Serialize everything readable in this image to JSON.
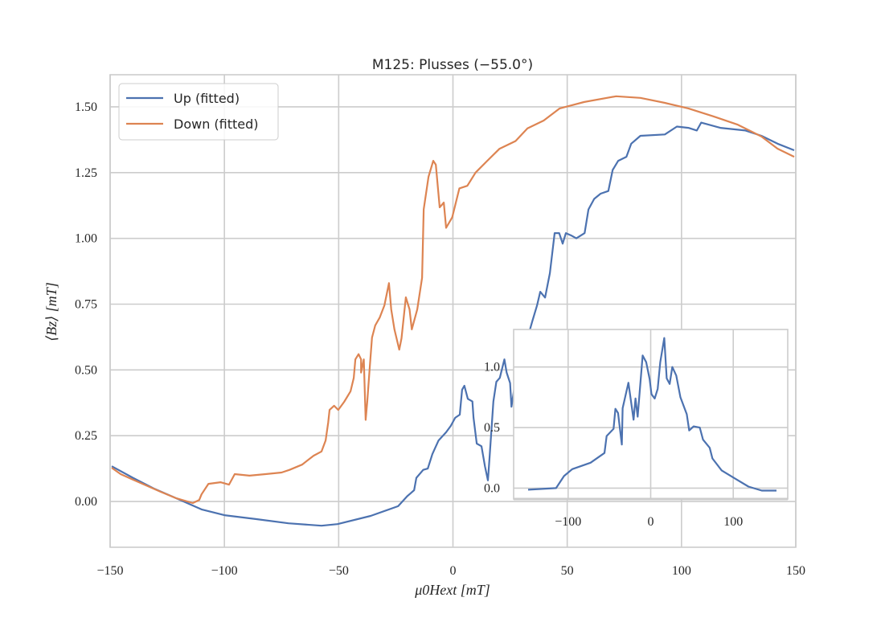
{
  "chart_data": [
    {
      "type": "line",
      "title": "M125: Plusses (−55.0°)",
      "xlabel": "μ0Hext [mT]",
      "ylabel": "⟨Bz⟩ [mT]",
      "xlim": [
        -150,
        150
      ],
      "ylim": [
        -0.174,
        1.622
      ],
      "xticks": [
        -150,
        -100,
        -50,
        0,
        50,
        100,
        150
      ],
      "xtick_labels": [
        "−150",
        "−100",
        "−50",
        "0",
        "50",
        "100",
        "150"
      ],
      "yticks": [
        0,
        0.25,
        0.5,
        0.75,
        1.0,
        1.25,
        1.5
      ],
      "ytick_labels": [
        "0.00",
        "0.25",
        "0.50",
        "0.75",
        "1.00",
        "1.25",
        "1.50"
      ],
      "grid": true,
      "legend_position": "top-left",
      "series": [
        {
          "name": "Up (fitted)",
          "color": "#4c72b0",
          "x": [
            -149.3,
            -140,
            -131,
            -121,
            -110,
            -100,
            -86,
            -72,
            -57.5,
            -50.5,
            -36,
            -24,
            -20,
            -17,
            -16,
            -13,
            -11,
            -9,
            -6.3,
            -3,
            -1,
            1,
            3,
            3.5,
            4,
            5,
            6.5,
            8.5,
            9,
            10.4,
            12.5,
            14,
            15.3,
            16,
            17.7,
            19,
            20.5,
            22.5,
            23.5,
            25,
            25.6,
            27,
            28.8,
            30.6,
            32.6,
            34.7,
            36.8,
            38.2,
            40.3,
            42.4,
            44.5,
            46.5,
            48,
            49.4,
            52,
            54,
            57.6,
            59.3,
            61.8,
            64.6,
            68,
            69.9,
            72.3,
            75.9,
            78,
            82,
            92.7,
            98,
            103,
            106.7,
            108.6,
            117,
            128,
            135,
            142,
            149.3
          ],
          "y": [
            0.134,
            0.09,
            0.05,
            0.012,
            -0.03,
            -0.052,
            -0.067,
            -0.083,
            -0.092,
            -0.086,
            -0.055,
            -0.018,
            0.02,
            0.043,
            0.09,
            0.12,
            0.125,
            0.18,
            0.232,
            0.263,
            0.287,
            0.318,
            0.33,
            0.38,
            0.425,
            0.44,
            0.39,
            0.38,
            0.318,
            0.22,
            0.21,
            0.134,
            0.08,
            0.165,
            0.38,
            0.455,
            0.47,
            0.54,
            0.49,
            0.45,
            0.36,
            0.44,
            0.52,
            0.56,
            0.62,
            0.685,
            0.745,
            0.797,
            0.775,
            0.868,
            1.02,
            1.02,
            0.98,
            1.02,
            1.01,
            1.0,
            1.02,
            1.11,
            1.15,
            1.17,
            1.18,
            1.26,
            1.295,
            1.31,
            1.36,
            1.39,
            1.395,
            1.425,
            1.42,
            1.41,
            1.44,
            1.42,
            1.41,
            1.39,
            1.36,
            1.335
          ]
        },
        {
          "name": "Down (fitted)",
          "color": "#dd8452",
          "x": [
            -149.3,
            -145.4,
            -140,
            -135,
            -128,
            -121,
            -113.8,
            -111,
            -110,
            -107,
            -101.7,
            -98,
            -95.5,
            -89,
            -82,
            -75,
            -71.5,
            -66,
            -61,
            -57.5,
            -55.7,
            -54.6,
            -54,
            -52,
            -50.2,
            -47.6,
            -44.8,
            -43.4,
            -42.7,
            -41.3,
            -40.2,
            -40.2,
            -39,
            -38.2,
            -37.5,
            -36.4,
            -35.4,
            -34,
            -32,
            -30,
            -28,
            -27,
            -25.6,
            -23.5,
            -22.5,
            -20.6,
            -19,
            -18,
            -15.6,
            -13.5,
            -12.8,
            -10.7,
            -8.6,
            -7.5,
            -5.8,
            -4,
            -3,
            -0.3,
            2.8,
            6.3,
            9.9,
            15,
            20.3,
            27.4,
            32.6,
            39.7,
            46.7,
            57.3,
            71.4,
            82,
            92.7,
            103,
            113.8,
            124.4,
            135,
            142,
            149.3
          ],
          "y": [
            0.128,
            0.104,
            0.083,
            0.064,
            0.037,
            0.012,
            -0.006,
            0.006,
            0.027,
            0.067,
            0.073,
            0.064,
            0.104,
            0.098,
            0.104,
            0.11,
            0.12,
            0.14,
            0.174,
            0.19,
            0.232,
            0.3,
            0.348,
            0.364,
            0.348,
            0.379,
            0.419,
            0.47,
            0.54,
            0.56,
            0.54,
            0.49,
            0.54,
            0.31,
            0.38,
            0.51,
            0.623,
            0.669,
            0.7,
            0.745,
            0.83,
            0.73,
            0.654,
            0.577,
            0.62,
            0.776,
            0.73,
            0.654,
            0.73,
            0.85,
            1.11,
            1.234,
            1.295,
            1.28,
            1.118,
            1.136,
            1.04,
            1.08,
            1.19,
            1.2,
            1.25,
            1.295,
            1.34,
            1.37,
            1.418,
            1.448,
            1.494,
            1.518,
            1.54,
            1.534,
            1.515,
            1.494,
            1.464,
            1.433,
            1.387,
            1.341,
            1.31
          ]
        }
      ]
    },
    {
      "type": "line",
      "title": "",
      "xlim": [
        -166,
        166
      ],
      "ylim": [
        -0.09,
        1.31
      ],
      "xticks": [
        -100,
        0,
        100
      ],
      "xtick_labels": [
        "−100",
        "0",
        "100"
      ],
      "yticks": [
        0,
        0.5,
        1.0
      ],
      "ytick_labels": [
        "0.0",
        "0.5",
        "1.0"
      ],
      "grid": true,
      "position": "inset-lower-right",
      "series": [
        {
          "name": "inset",
          "color": "#4c72b0",
          "x": [
            -148.5,
            -114.6,
            -105,
            -95,
            -72.8,
            -56,
            -53.4,
            -45,
            -42.7,
            -39.5,
            -35,
            -34,
            -27,
            -20.7,
            -18.4,
            -15.8,
            -9.7,
            -5.5,
            -1.3,
            1,
            4.9,
            8.5,
            11.6,
            16.5,
            19.4,
            23,
            26.2,
            31,
            36,
            43.7,
            46.6,
            52,
            59.5,
            63.4,
            71.5,
            74.8,
            86,
            102,
            118.4,
            134.6,
            152.4
          ],
          "y": [
            -0.013,
            0.0,
            0.1,
            0.157,
            0.21,
            0.29,
            0.43,
            0.49,
            0.655,
            0.62,
            0.36,
            0.66,
            0.87,
            0.565,
            0.74,
            0.59,
            1.095,
            1.04,
            0.9,
            0.775,
            0.74,
            0.82,
            1.04,
            1.24,
            0.907,
            0.86,
            1.0,
            0.93,
            0.75,
            0.61,
            0.476,
            0.51,
            0.5,
            0.4,
            0.333,
            0.245,
            0.146,
            0.08,
            0.013,
            -0.02,
            -0.02
          ]
        }
      ]
    }
  ]
}
